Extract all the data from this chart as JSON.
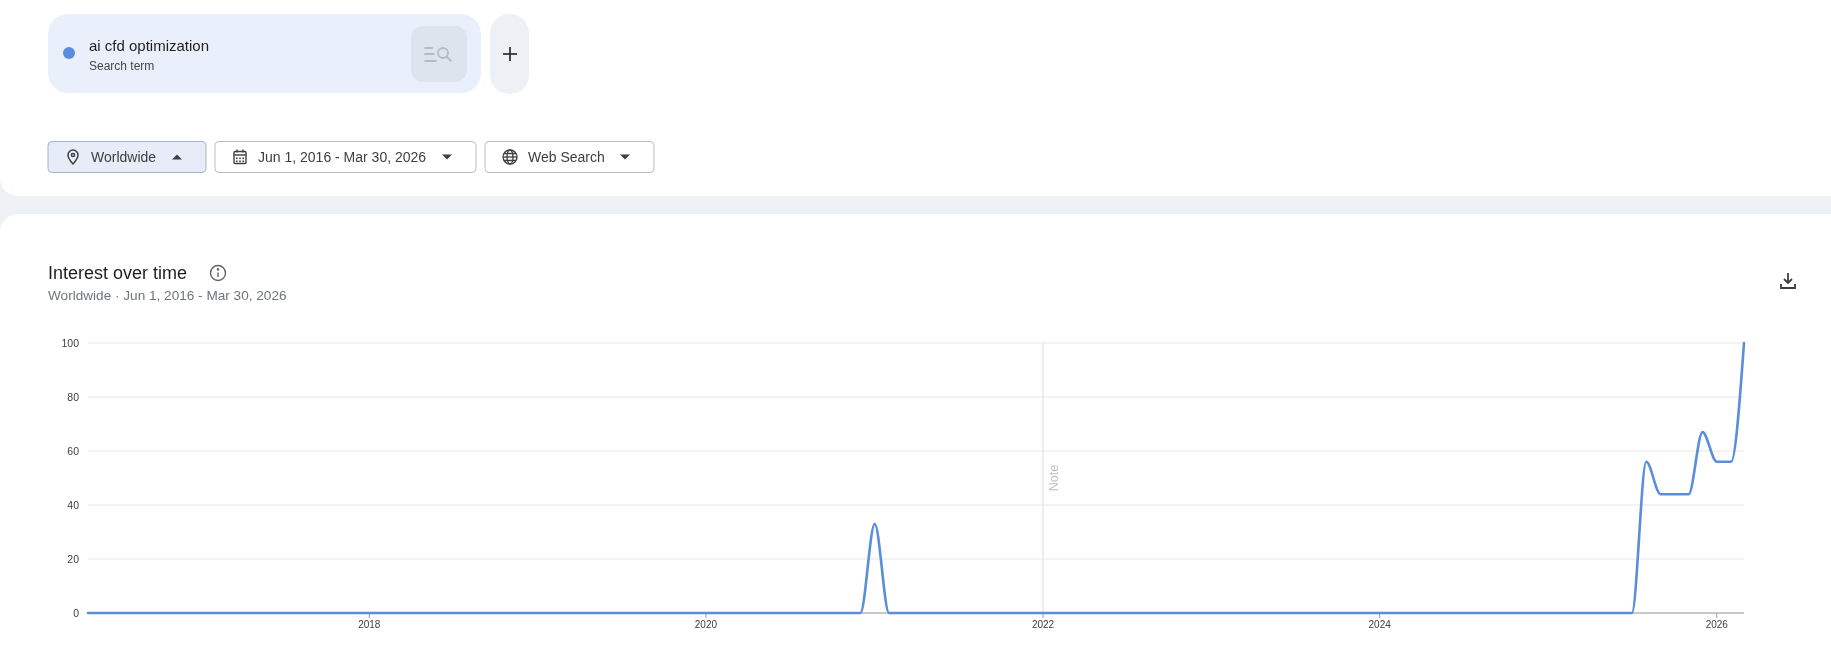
{
  "chart_data": {
    "type": "line",
    "title": "Interest over time",
    "subtitle": "Worldwide · Jun 1, 2016 - Mar 30, 2026",
    "annotations": [
      "Search term",
      "Worldwide",
      "Jun 1, 2016 - Mar 30, 2026",
      "Web Search"
    ],
    "x": [
      "2016-05",
      "2016-06",
      "2016-07",
      "2016-08",
      "2016-09",
      "2016-10",
      "2016-11",
      "2016-12",
      "2017-01",
      "2017-02",
      "2017-03",
      "2017-04",
      "2017-05",
      "2017-06",
      "2017-07",
      "2017-08",
      "2017-09",
      "2017-10",
      "2017-11",
      "2017-12",
      "2018-01",
      "2018-02",
      "2018-03",
      "2018-04",
      "2018-05",
      "2018-06",
      "2018-07",
      "2018-08",
      "2018-09",
      "2018-10",
      "2018-11",
      "2018-12",
      "2019-01",
      "2019-02",
      "2019-03",
      "2019-04",
      "2019-05",
      "2019-06",
      "2019-07",
      "2019-08",
      "2019-09",
      "2019-10",
      "2019-11",
      "2019-12",
      "2020-01",
      "2020-02",
      "2020-03",
      "2020-04",
      "2020-05",
      "2020-06",
      "2020-07",
      "2020-08",
      "2020-09",
      "2020-10",
      "2020-11",
      "2020-12",
      "2021-01",
      "2021-02",
      "2021-03",
      "2021-04",
      "2021-05",
      "2021-06",
      "2021-07",
      "2021-08",
      "2021-09",
      "2021-10",
      "2021-11",
      "2021-12",
      "2022-01",
      "2022-02",
      "2022-03",
      "2022-04",
      "2022-05",
      "2022-06",
      "2022-07",
      "2022-08",
      "2022-09",
      "2022-10",
      "2022-11",
      "2022-12",
      "2023-01",
      "2023-02",
      "2023-03",
      "2023-04",
      "2023-05",
      "2023-06",
      "2023-07",
      "2023-08",
      "2023-09",
      "2023-10",
      "2023-11",
      "2023-12",
      "2024-01",
      "2024-02",
      "2024-03",
      "2024-04",
      "2024-05",
      "2024-06",
      "2024-07",
      "2024-08",
      "2024-09",
      "2024-10",
      "2024-11",
      "2024-12",
      "2025-01",
      "2025-02",
      "2025-03",
      "2025-04",
      "2025-05",
      "2025-06",
      "2025-07",
      "2025-08",
      "2025-09",
      "2025-10",
      "2025-11",
      "2025-12",
      "2026-01",
      "2026-02",
      "2026-03"
    ],
    "series": [
      {
        "name": "ai cfd optimization",
        "color": "#5a8ddc",
        "values": [
          0,
          0,
          0,
          0,
          0,
          0,
          0,
          0,
          0,
          0,
          0,
          0,
          0,
          0,
          0,
          0,
          0,
          0,
          0,
          0,
          0,
          0,
          0,
          0,
          0,
          0,
          0,
          0,
          0,
          0,
          0,
          0,
          0,
          0,
          0,
          0,
          0,
          0,
          0,
          0,
          0,
          0,
          0,
          0,
          0,
          0,
          0,
          0,
          0,
          0,
          0,
          0,
          0,
          0,
          0,
          0,
          33,
          0,
          0,
          0,
          0,
          0,
          0,
          0,
          0,
          0,
          0,
          0,
          0,
          0,
          0,
          0,
          0,
          0,
          0,
          0,
          0,
          0,
          0,
          0,
          0,
          0,
          0,
          0,
          0,
          0,
          0,
          0,
          0,
          0,
          0,
          0,
          0,
          0,
          0,
          0,
          0,
          0,
          0,
          0,
          0,
          0,
          0,
          0,
          0,
          0,
          0,
          0,
          0,
          0,
          0,
          56,
          44,
          44,
          44,
          67,
          56,
          56,
          100
        ]
      }
    ],
    "xlim": [
      "2016-05",
      "2026-03"
    ],
    "xticks": [
      "2018",
      "2020",
      "2022",
      "2024",
      "2026"
    ],
    "ylim": [
      0,
      100
    ],
    "yticks": [
      0,
      20,
      40,
      60,
      80,
      100
    ],
    "grid": "y",
    "legend": "top left",
    "ref_lines": [
      {
        "axis": "x",
        "value": "2022-01",
        "label": "Note",
        "color": "#e3e3e3"
      }
    ]
  }
}
